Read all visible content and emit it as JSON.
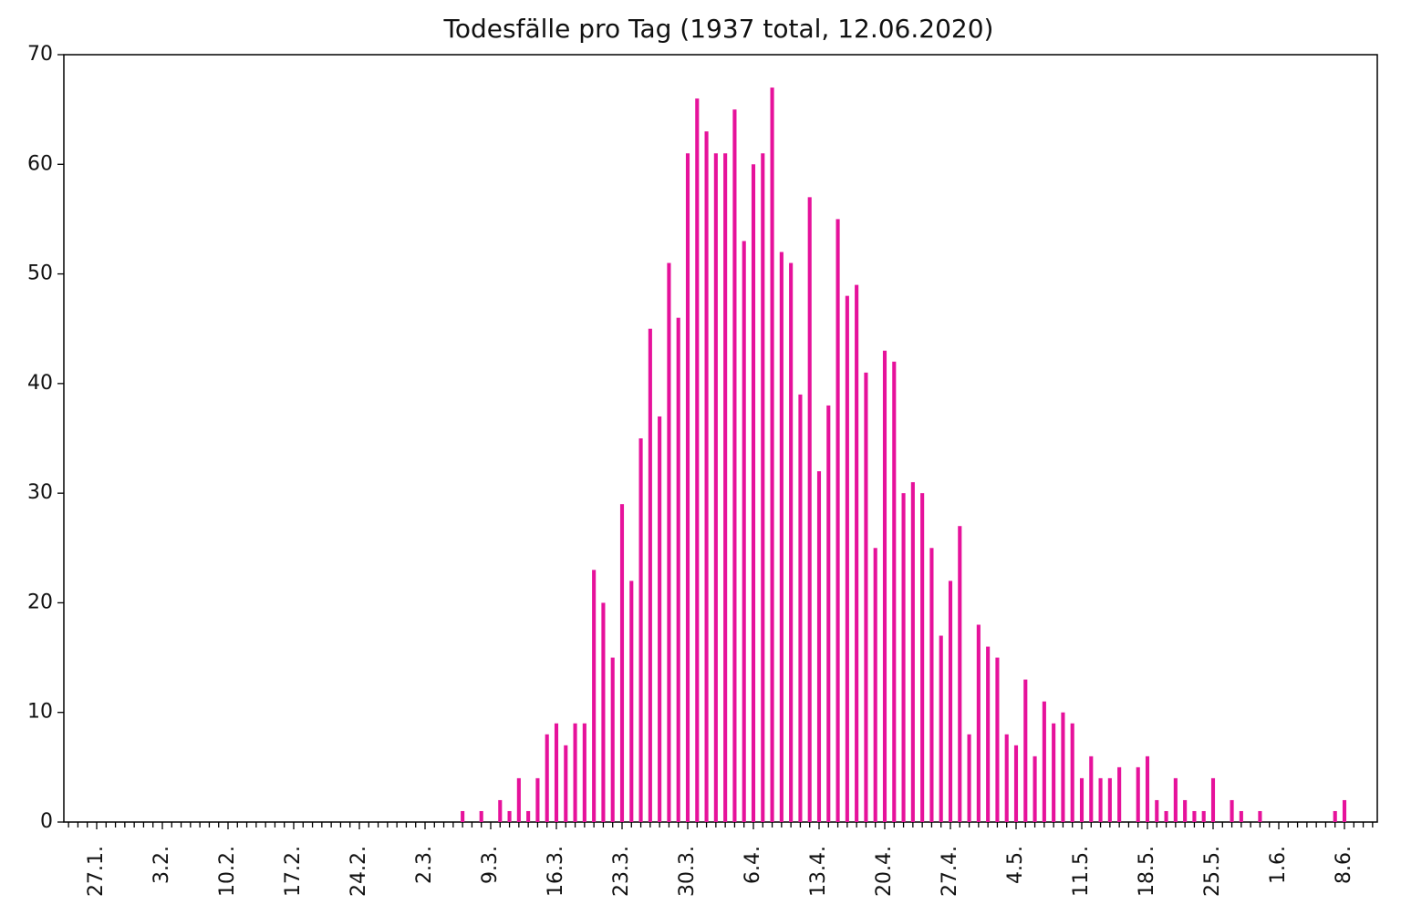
{
  "chart_data": {
    "type": "bar",
    "title": "Todesfälle pro Tag (1937 total, 12.06.2020)",
    "color": "#e6129b",
    "ylim": [
      0,
      70
    ],
    "yticks": [
      0,
      10,
      20,
      30,
      40,
      50,
      60,
      70
    ],
    "grid": false,
    "categories": [
      null,
      null,
      null,
      "27.1.",
      null,
      null,
      null,
      null,
      null,
      null,
      "3.2.",
      null,
      null,
      null,
      null,
      null,
      null,
      "10.2.",
      null,
      null,
      null,
      null,
      null,
      null,
      "17.2.",
      null,
      null,
      null,
      null,
      null,
      null,
      "24.2.",
      null,
      null,
      null,
      null,
      null,
      null,
      "2.3.",
      null,
      null,
      null,
      null,
      null,
      null,
      "9.3.",
      null,
      null,
      null,
      null,
      null,
      null,
      "16.3.",
      null,
      null,
      null,
      null,
      null,
      null,
      "23.3.",
      null,
      null,
      null,
      null,
      null,
      null,
      "30.3.",
      null,
      null,
      null,
      null,
      null,
      null,
      "6.4.",
      null,
      null,
      null,
      null,
      null,
      null,
      "13.4.",
      null,
      null,
      null,
      null,
      null,
      null,
      "20.4.",
      null,
      null,
      null,
      null,
      null,
      null,
      "27.4.",
      null,
      null,
      null,
      null,
      null,
      null,
      "4.5.",
      null,
      null,
      null,
      null,
      null,
      null,
      "11.5.",
      null,
      null,
      null,
      null,
      null,
      null,
      "18.5.",
      null,
      null,
      null,
      null,
      null,
      null,
      "25.5.",
      null,
      null,
      null,
      null,
      null,
      null,
      "1.6.",
      null,
      null,
      null,
      null,
      null,
      null,
      "8.6.",
      null,
      null,
      null
    ],
    "values": [
      0,
      0,
      0,
      0,
      0,
      0,
      0,
      0,
      0,
      0,
      0,
      0,
      0,
      0,
      0,
      0,
      0,
      0,
      0,
      0,
      0,
      0,
      0,
      0,
      0,
      0,
      0,
      0,
      0,
      0,
      0,
      0,
      0,
      0,
      0,
      0,
      0,
      0,
      0,
      0,
      0,
      0,
      1,
      0,
      1,
      0,
      2,
      1,
      4,
      1,
      4,
      8,
      9,
      7,
      9,
      9,
      23,
      20,
      15,
      29,
      22,
      35,
      45,
      37,
      51,
      46,
      61,
      66,
      63,
      61,
      61,
      65,
      53,
      60,
      61,
      67,
      52,
      51,
      39,
      57,
      32,
      38,
      55,
      48,
      49,
      41,
      25,
      43,
      42,
      30,
      31,
      30,
      25,
      17,
      22,
      27,
      8,
      18,
      16,
      15,
      8,
      7,
      13,
      6,
      11,
      9,
      10,
      9,
      4,
      6,
      4,
      4,
      5,
      0,
      5,
      6,
      2,
      1,
      4,
      2,
      1,
      1,
      4,
      0,
      2,
      1,
      0,
      1,
      0,
      0,
      0,
      0,
      0,
      0,
      0,
      1,
      2,
      0,
      0,
      0
    ]
  }
}
